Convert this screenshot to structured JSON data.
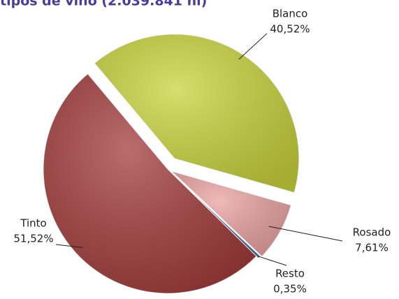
{
  "chart_data": {
    "type": "pie",
    "title": "tipos de vino (2.039.841 hl)",
    "categories": [
      "Blanco",
      "Rosado",
      "Resto",
      "Tinto"
    ],
    "values": [
      40.52,
      7.61,
      0.35,
      51.52
    ],
    "value_labels": [
      "40,52%",
      "7,61%",
      "0,35%",
      "51,52%"
    ],
    "colors": [
      "#c9d43c",
      "#e9a3a1",
      "#4d6fa3",
      "#a33c3c"
    ]
  }
}
